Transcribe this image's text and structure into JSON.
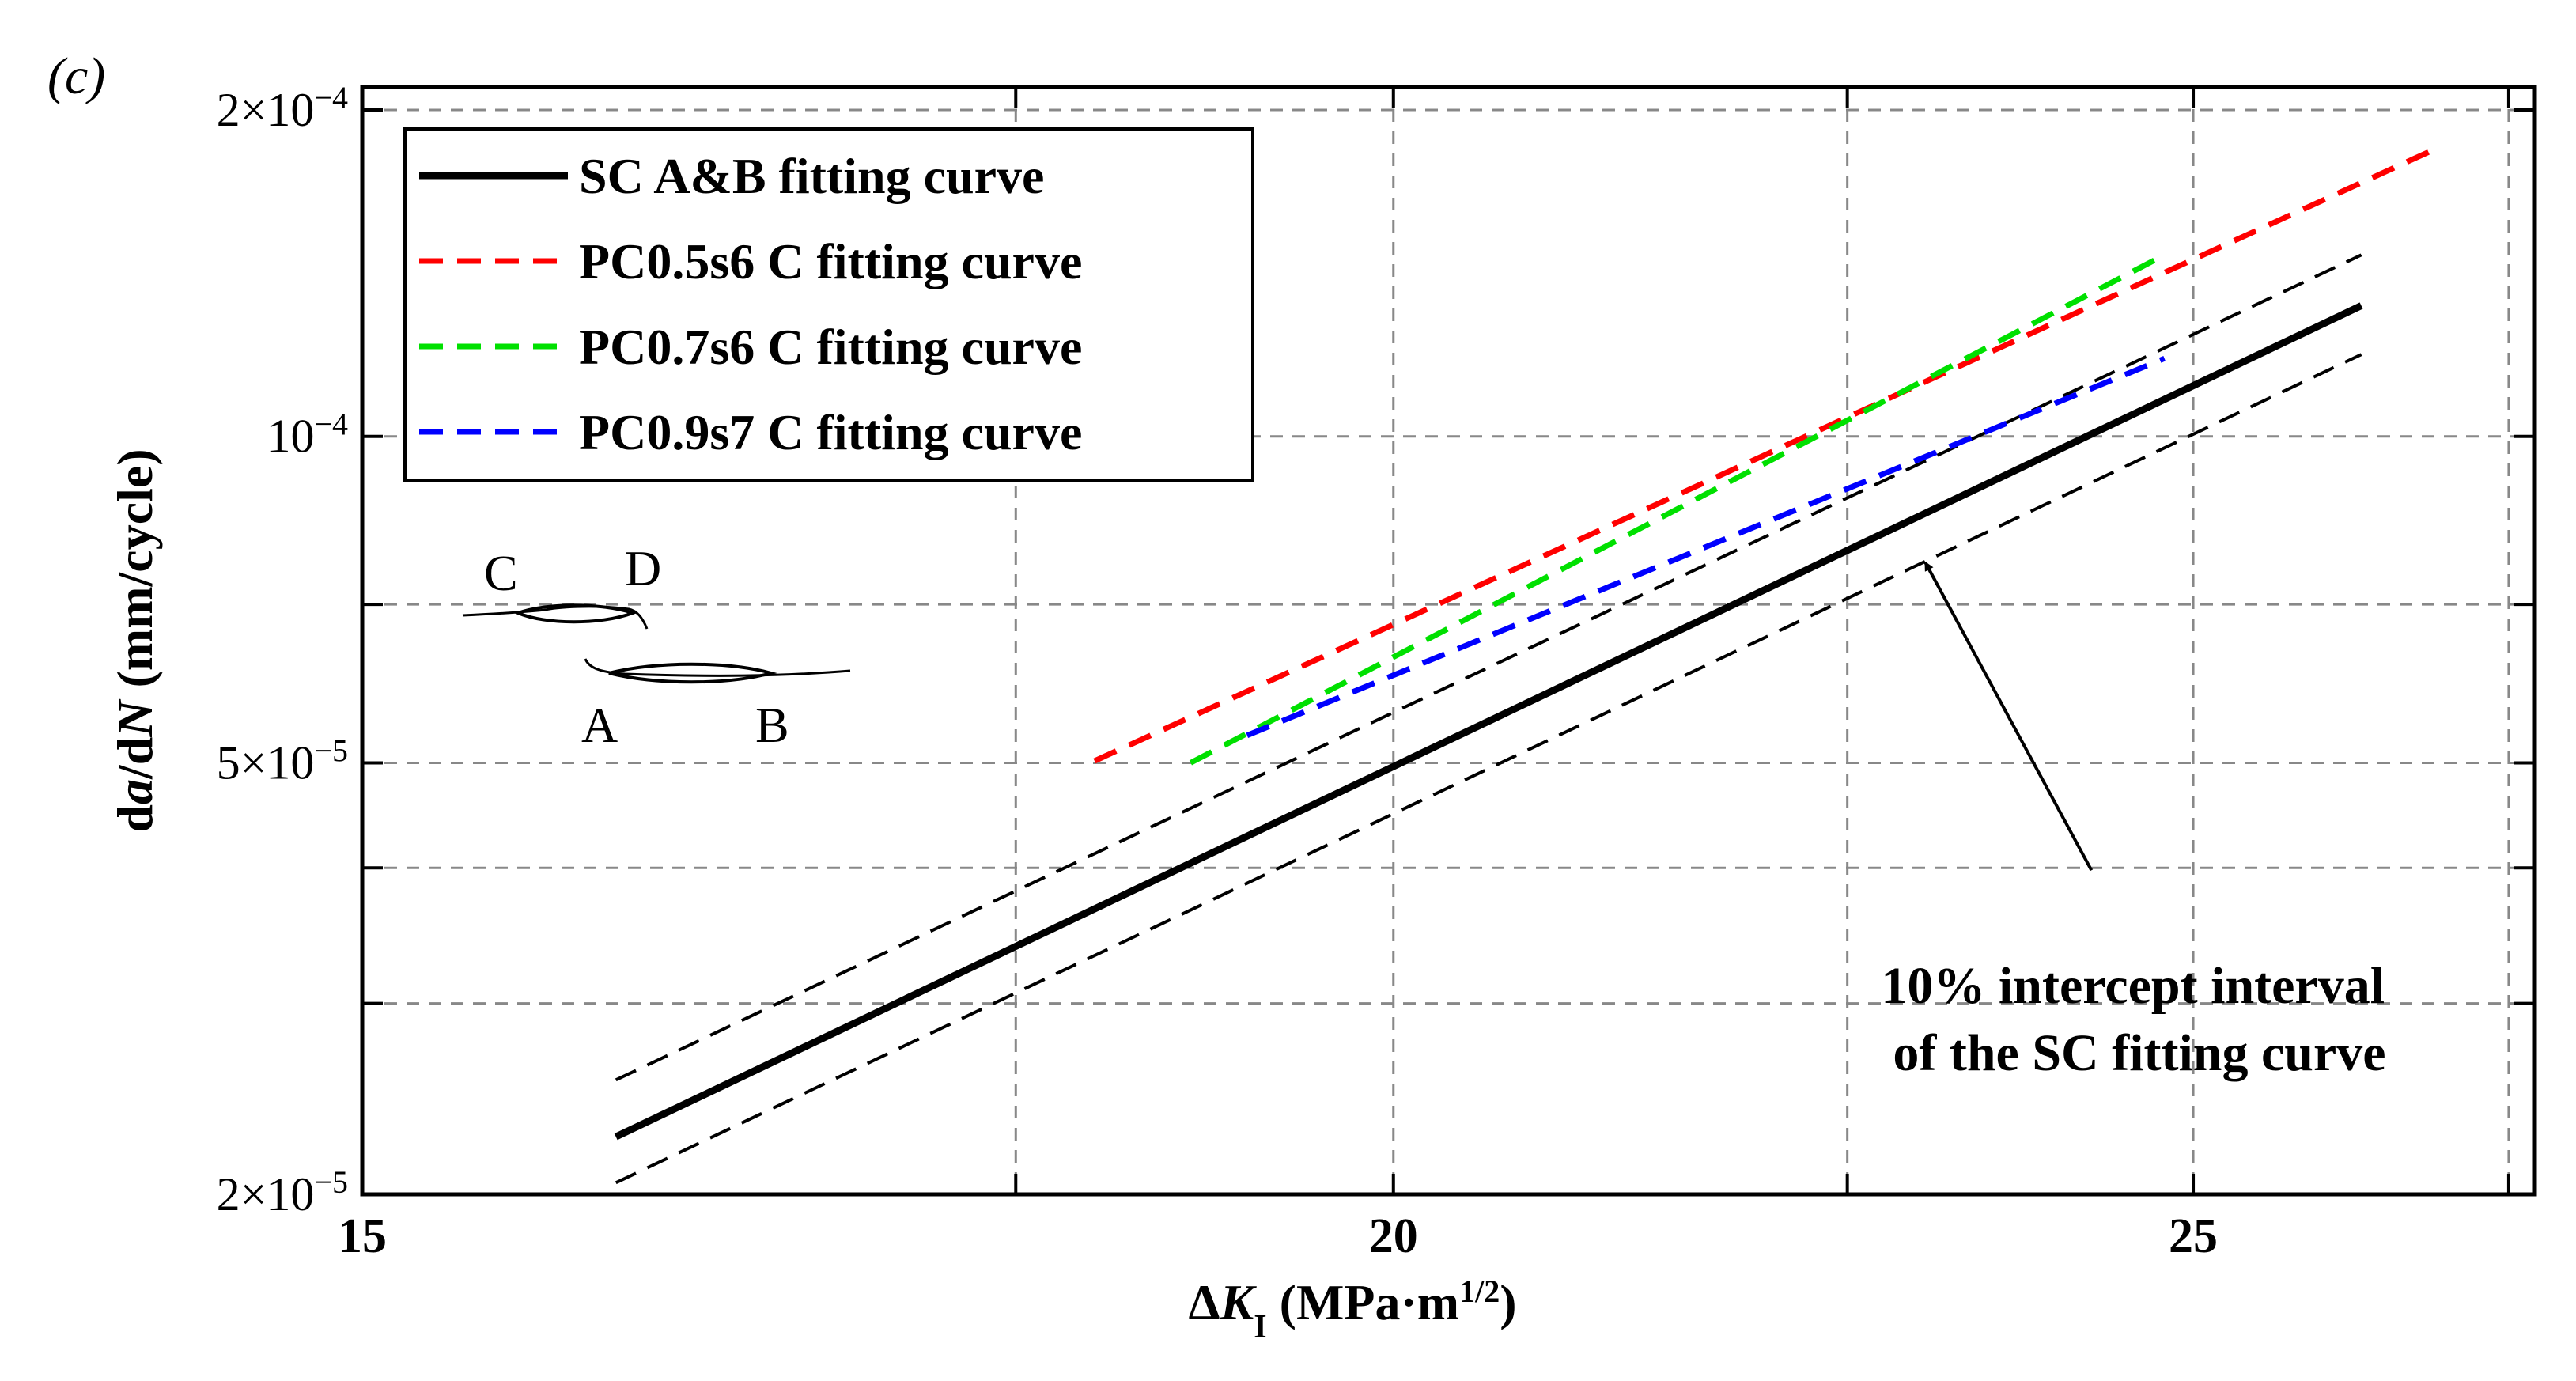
{
  "panel_label": "(c)",
  "chart_data": {
    "type": "line",
    "xscale": "log",
    "yscale": "log",
    "xlim": [
      15,
      27.5
    ],
    "ylim": [
      2e-05,
      0.00021
    ],
    "xticks": [
      {
        "value": 15,
        "label": "15"
      },
      {
        "value": 20,
        "label": "20"
      },
      {
        "value": 25,
        "label": "25"
      }
    ],
    "xgrid": [
      18,
      20,
      22.7,
      25,
      27.3
    ],
    "yticks": [
      {
        "value": 2e-05,
        "base": "2×10",
        "exp": "−5"
      },
      {
        "value": 5e-05,
        "base": "5×10",
        "exp": "−5"
      },
      {
        "value": 0.0001,
        "base": "10",
        "exp": "−4"
      },
      {
        "value": 0.0002,
        "base": "2×10",
        "exp": "−4"
      }
    ],
    "ygrid": [
      3e-05,
      4e-05,
      5e-05,
      7e-05,
      0.0001,
      0.0002
    ],
    "xlabel": {
      "delta": "Δ",
      "var": "K",
      "sub": "I",
      "unit": " (MPa·m",
      "sup": "1/2",
      "close": ")"
    },
    "ylabel": {
      "d1": "d",
      "a": "a",
      "mid": "/d",
      "n": "N",
      "unit": " (mm/cycle)"
    },
    "series": [
      {
        "name": "SC A&B fitting curve",
        "color": "#000000",
        "style": "solid",
        "width": 9,
        "points": [
          [
            16.1,
            2.26e-05
          ],
          [
            26.2,
            0.000132
          ]
        ]
      },
      {
        "name": "PC0.5s6 C fitting curve",
        "color": "#ff0000",
        "style": "dashed",
        "width": 7,
        "points": [
          [
            18.4,
            5.02e-05
          ],
          [
            26.7,
            0.000183
          ]
        ]
      },
      {
        "name": "PC0.7s6 C fitting curve",
        "color": "#00e000",
        "style": "dashed",
        "width": 7,
        "points": [
          [
            18.9,
            5e-05
          ],
          [
            24.8,
            0.000147
          ]
        ]
      },
      {
        "name": "PC0.9s7 C fitting curve",
        "color": "#0000ff",
        "style": "dashed",
        "width": 7,
        "points": [
          [
            19.2,
            5.3e-05
          ],
          [
            24.8,
            0.000118
          ]
        ]
      }
    ],
    "bounds": [
      {
        "name": "SC upper 10% intercept",
        "color": "#000000",
        "points": [
          [
            16.1,
            2.55e-05
          ],
          [
            26.2,
            0.000147
          ]
        ]
      },
      {
        "name": "SC lower 10% intercept",
        "color": "#000000",
        "points": [
          [
            16.1,
            2.05e-05
          ],
          [
            26.2,
            0.000119
          ]
        ]
      }
    ],
    "annotation": {
      "lines": [
        "10% intercept interval",
        "of the SC fitting curve"
      ],
      "arrow_from": [
        24.3,
        3.98e-05
      ],
      "arrow_to": [
        23.2,
        7.65e-05
      ]
    }
  },
  "inset": {
    "labels": [
      "C",
      "D",
      "A",
      "B"
    ]
  }
}
